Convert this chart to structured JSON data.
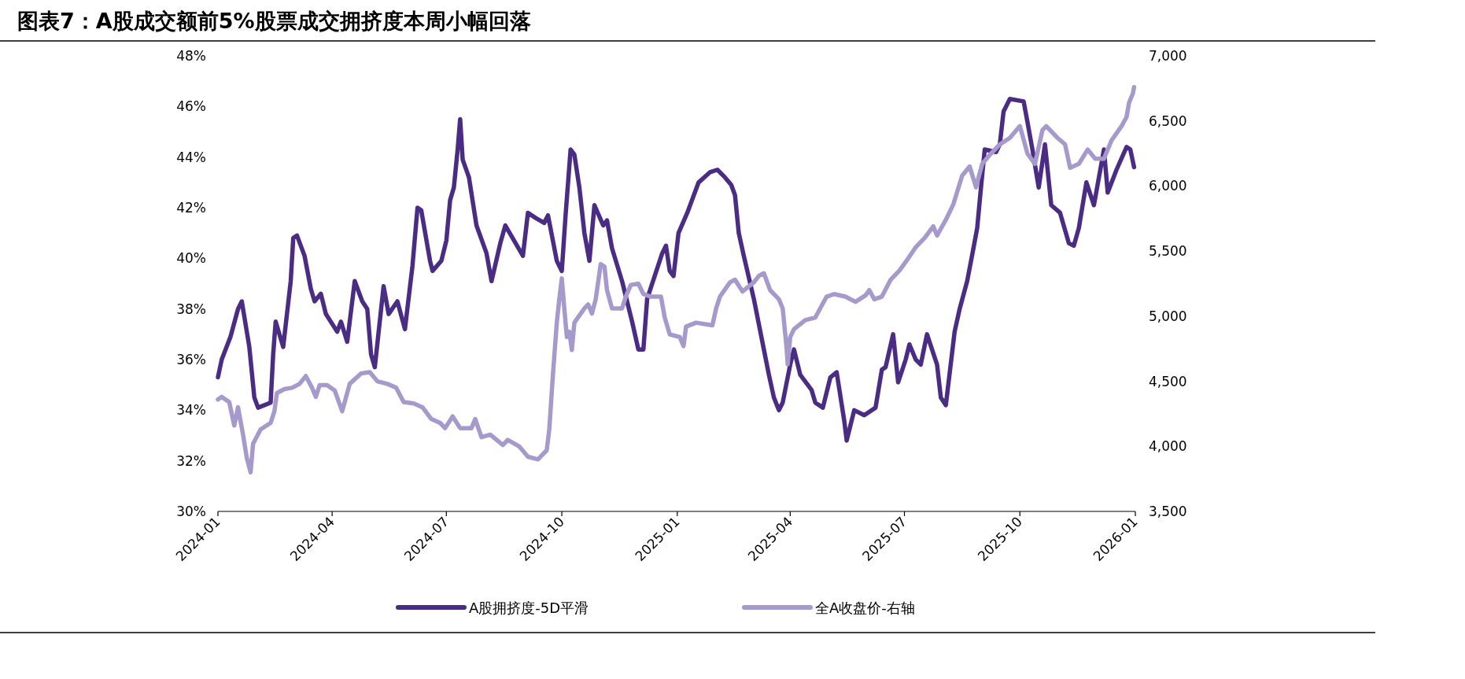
{
  "chart_data": {
    "type": "line",
    "title": "图表7：A股成交额前5%股票成交拥挤度本周小幅回落",
    "xlim": [
      "2024-01-01",
      "2026-01-01"
    ],
    "xticks": [
      "2024-01",
      "2024-04",
      "2024-07",
      "2024-10",
      "2025-01",
      "2025-04",
      "2025-07",
      "2025-10",
      "2026-01"
    ],
    "ylim": [
      30,
      48
    ],
    "yticks": [
      {
        "value": 30,
        "label": "30%"
      },
      {
        "value": 32,
        "label": "32%"
      },
      {
        "value": 34,
        "label": "34%"
      },
      {
        "value": 36,
        "label": "36%"
      },
      {
        "value": 38,
        "label": "38%"
      },
      {
        "value": 40,
        "label": "40%"
      },
      {
        "value": 42,
        "label": "42%"
      },
      {
        "value": 44,
        "label": "44%"
      },
      {
        "value": 46,
        "label": "46%"
      },
      {
        "value": 48,
        "label": "48%"
      }
    ],
    "y2lim": [
      3500,
      7000
    ],
    "y2ticks": [
      {
        "value": 3500,
        "label": "3,500"
      },
      {
        "value": 4000,
        "label": "4,000"
      },
      {
        "value": 4500,
        "label": "4,500"
      },
      {
        "value": 5000,
        "label": "5,000"
      },
      {
        "value": 5500,
        "label": "5,500"
      },
      {
        "value": 6000,
        "label": "6,000"
      },
      {
        "value": 6500,
        "label": "6,500"
      },
      {
        "value": 7000,
        "label": "7,000"
      }
    ],
    "legend": "bottom",
    "series": [
      {
        "name": "A股拥挤度-5D平滑",
        "color": "#4b2c84",
        "x": [
          "2024-01-01",
          "2024-01-04",
          "2024-01-11",
          "2024-01-17",
          "2024-01-20",
          "2024-01-26",
          "2024-01-30",
          "2024-02-02",
          "2024-02-12",
          "2024-02-14",
          "2024-02-16",
          "2024-02-22",
          "2024-02-28",
          "2024-03-01",
          "2024-03-04",
          "2024-03-10",
          "2024-03-15",
          "2024-03-18",
          "2024-03-23",
          "2024-03-27",
          "2024-04-05",
          "2024-04-08",
          "2024-04-13",
          "2024-04-19",
          "2024-04-25",
          "2024-04-29",
          "2024-05-02",
          "2024-05-05",
          "2024-05-12",
          "2024-05-16",
          "2024-05-23",
          "2024-05-29",
          "2024-06-04",
          "2024-06-08",
          "2024-06-11",
          "2024-06-18",
          "2024-06-20",
          "2024-06-27",
          "2024-07-01",
          "2024-07-04",
          "2024-07-07",
          "2024-07-10",
          "2024-07-12",
          "2024-07-14",
          "2024-07-19",
          "2024-07-25",
          "2024-08-02",
          "2024-08-06",
          "2024-08-13",
          "2024-08-17",
          "2024-08-24",
          "2024-08-31",
          "2024-09-04",
          "2024-09-10",
          "2024-09-17",
          "2024-09-20",
          "2024-09-27",
          "2024-10-01",
          "2024-10-04",
          "2024-10-08",
          "2024-10-11",
          "2024-10-15",
          "2024-10-19",
          "2024-10-23",
          "2024-10-27",
          "2024-11-03",
          "2024-11-06",
          "2024-11-10",
          "2024-11-18",
          "2024-11-26",
          "2024-12-01",
          "2024-12-05",
          "2024-12-08",
          "2024-12-14",
          "2024-12-20",
          "2024-12-23",
          "2024-12-26",
          "2024-12-29",
          "2025-01-02",
          "2025-01-09",
          "2025-01-18",
          "2025-01-27",
          "2025-02-02",
          "2025-02-08",
          "2025-02-13",
          "2025-02-16",
          "2025-02-19",
          "2025-02-23",
          "2025-03-03",
          "2025-03-11",
          "2025-03-15",
          "2025-03-19",
          "2025-03-23",
          "2025-03-26",
          "2025-04-01",
          "2025-04-04",
          "2025-04-09",
          "2025-04-18",
          "2025-04-21",
          "2025-04-27",
          "2025-05-03",
          "2025-05-08",
          "2025-05-14",
          "2025-05-16",
          "2025-05-22",
          "2025-05-30",
          "2025-06-08",
          "2025-06-13",
          "2025-06-16",
          "2025-06-22",
          "2025-06-26",
          "2025-07-02",
          "2025-07-05",
          "2025-07-10",
          "2025-07-14",
          "2025-07-19",
          "2025-07-27",
          "2025-07-30",
          "2025-08-03",
          "2025-08-10",
          "2025-08-14",
          "2025-08-20",
          "2025-08-25",
          "2025-08-28",
          "2025-08-31",
          "2025-09-03",
          "2025-09-12",
          "2025-09-15",
          "2025-09-18",
          "2025-09-23",
          "2025-10-04",
          "2025-10-07",
          "2025-10-11",
          "2025-10-16",
          "2025-10-21",
          "2025-10-26",
          "2025-11-02",
          "2025-11-09",
          "2025-11-13",
          "2025-11-17",
          "2025-11-23",
          "2025-11-29",
          "2025-12-07",
          "2025-12-10",
          "2025-12-17",
          "2025-12-25",
          "2025-12-28",
          "2025-12-31"
        ],
        "values": [
          35.3,
          36.0,
          36.9,
          38.0,
          38.3,
          36.5,
          34.5,
          34.1,
          34.3,
          36.2,
          37.5,
          36.5,
          39.1,
          40.8,
          40.9,
          40.1,
          38.8,
          38.3,
          38.6,
          37.8,
          37.1,
          37.5,
          36.7,
          39.1,
          38.3,
          38.0,
          36.2,
          35.7,
          38.9,
          37.8,
          38.3,
          37.2,
          39.7,
          42.0,
          41.9,
          39.9,
          39.5,
          39.9,
          40.7,
          42.3,
          42.8,
          44.3,
          45.5,
          43.9,
          43.2,
          41.3,
          40.2,
          39.1,
          40.6,
          41.3,
          40.7,
          40.1,
          41.8,
          41.6,
          41.4,
          41.7,
          39.9,
          39.5,
          41.7,
          44.3,
          44.1,
          42.8,
          41.0,
          39.9,
          42.1,
          41.3,
          41.5,
          40.4,
          39.1,
          37.5,
          36.4,
          36.4,
          38.4,
          39.3,
          40.2,
          40.5,
          39.5,
          39.3,
          41.0,
          41.8,
          43.0,
          43.4,
          43.5,
          43.2,
          42.9,
          42.5,
          41.0,
          40.1,
          38.4,
          36.4,
          35.4,
          34.5,
          34.0,
          34.3,
          35.8,
          36.4,
          35.4,
          34.8,
          34.3,
          34.1,
          35.3,
          35.5,
          33.6,
          32.8,
          34.0,
          33.8,
          34.1,
          35.6,
          35.7,
          37.0,
          35.1,
          36.0,
          36.6,
          36.0,
          35.8,
          37.0,
          35.8,
          34.5,
          34.2,
          37.1,
          38.0,
          39.1,
          40.4,
          41.2,
          42.8,
          44.3,
          44.2,
          44.5,
          45.8,
          46.3,
          46.2,
          45.4,
          44.3,
          42.8,
          44.5,
          42.1,
          41.8,
          40.6,
          40.5,
          41.2,
          43.0,
          42.1,
          44.3,
          42.6,
          43.5,
          44.4,
          44.3,
          43.6
        ]
      },
      {
        "name": "全A收盘价-右轴",
        "color": "#a69acd",
        "axis": "y2",
        "x": [
          "2024-01-01",
          "2024-01-04",
          "2024-01-10",
          "2024-01-14",
          "2024-01-17",
          "2024-01-21",
          "2024-01-24",
          "2024-01-27",
          "2024-01-29",
          "2024-02-04",
          "2024-02-12",
          "2024-02-15",
          "2024-02-17",
          "2024-02-23",
          "2024-02-29",
          "2024-03-06",
          "2024-03-11",
          "2024-03-16",
          "2024-03-19",
          "2024-03-22",
          "2024-03-28",
          "2024-04-03",
          "2024-04-09",
          "2024-04-15",
          "2024-04-24",
          "2024-05-01",
          "2024-05-07",
          "2024-05-15",
          "2024-05-22",
          "2024-05-28",
          "2024-06-05",
          "2024-06-12",
          "2024-06-19",
          "2024-06-26",
          "2024-06-30",
          "2024-07-06",
          "2024-07-12",
          "2024-07-21",
          "2024-07-24",
          "2024-07-29",
          "2024-08-05",
          "2024-08-15",
          "2024-08-19",
          "2024-08-28",
          "2024-09-04",
          "2024-09-12",
          "2024-09-19",
          "2024-09-21",
          "2024-09-24",
          "2024-09-27",
          "2024-09-29",
          "2024-10-01",
          "2024-10-03",
          "2024-10-05",
          "2024-10-07",
          "2024-10-09",
          "2024-10-11",
          "2024-10-19",
          "2024-10-22",
          "2024-10-25",
          "2024-10-28",
          "2024-11-01",
          "2024-11-04",
          "2024-11-06",
          "2024-11-10",
          "2024-11-18",
          "2024-11-21",
          "2024-11-25",
          "2024-12-01",
          "2024-12-05",
          "2024-12-11",
          "2024-12-19",
          "2024-12-22",
          "2024-12-26",
          "2025-01-03",
          "2025-01-06",
          "2025-01-08",
          "2025-01-16",
          "2025-01-29",
          "2025-02-01",
          "2025-02-04",
          "2025-02-12",
          "2025-02-16",
          "2025-02-22",
          "2025-03-03",
          "2025-03-07",
          "2025-03-11",
          "2025-03-16",
          "2025-03-23",
          "2025-03-26",
          "2025-03-29",
          "2025-03-30",
          "2025-04-01",
          "2025-04-04",
          "2025-04-13",
          "2025-04-21",
          "2025-04-30",
          "2025-05-06",
          "2025-05-15",
          "2025-05-23",
          "2025-05-31",
          "2025-06-03",
          "2025-06-07",
          "2025-06-13",
          "2025-06-20",
          "2025-06-27",
          "2025-07-03",
          "2025-07-10",
          "2025-07-17",
          "2025-07-24",
          "2025-07-27",
          "2025-08-03",
          "2025-08-09",
          "2025-08-16",
          "2025-08-22",
          "2025-08-27",
          "2025-09-01",
          "2025-09-08",
          "2025-09-15",
          "2025-09-23",
          "2025-10-01",
          "2025-10-07",
          "2025-10-13",
          "2025-10-19",
          "2025-10-22",
          "2025-10-31",
          "2025-11-06",
          "2025-11-10",
          "2025-11-17",
          "2025-11-24",
          "2025-11-30",
          "2025-12-07",
          "2025-12-13",
          "2025-12-21",
          "2025-12-25",
          "2025-12-27",
          "2025-12-30",
          "2025-12-31"
        ],
        "values": [
          4360,
          4380,
          4340,
          4160,
          4300,
          4090,
          3910,
          3800,
          4020,
          4130,
          4180,
          4270,
          4410,
          4440,
          4450,
          4480,
          4540,
          4450,
          4380,
          4470,
          4470,
          4430,
          4270,
          4480,
          4560,
          4570,
          4500,
          4480,
          4450,
          4340,
          4330,
          4300,
          4210,
          4180,
          4140,
          4230,
          4140,
          4140,
          4210,
          4070,
          4090,
          4010,
          4050,
          4000,
          3920,
          3900,
          3970,
          4130,
          4560,
          4950,
          5130,
          5290,
          5060,
          4840,
          4880,
          4740,
          4950,
          5060,
          5090,
          5020,
          5130,
          5400,
          5380,
          5200,
          5060,
          5060,
          5150,
          5240,
          5250,
          5170,
          5150,
          5150,
          4990,
          4860,
          4840,
          4770,
          4920,
          4950,
          4930,
          5060,
          5150,
          5260,
          5280,
          5190,
          5260,
          5310,
          5330,
          5200,
          5130,
          5060,
          4770,
          4630,
          4840,
          4900,
          4970,
          4990,
          5150,
          5170,
          5150,
          5110,
          5160,
          5200,
          5130,
          5150,
          5280,
          5350,
          5430,
          5530,
          5600,
          5690,
          5620,
          5740,
          5860,
          6080,
          6150,
          5990,
          6170,
          6250,
          6320,
          6370,
          6460,
          6250,
          6170,
          6430,
          6460,
          6370,
          6320,
          6140,
          6170,
          6280,
          6210,
          6210,
          6350,
          6460,
          6530,
          6640,
          6710,
          6760
        ]
      }
    ]
  }
}
